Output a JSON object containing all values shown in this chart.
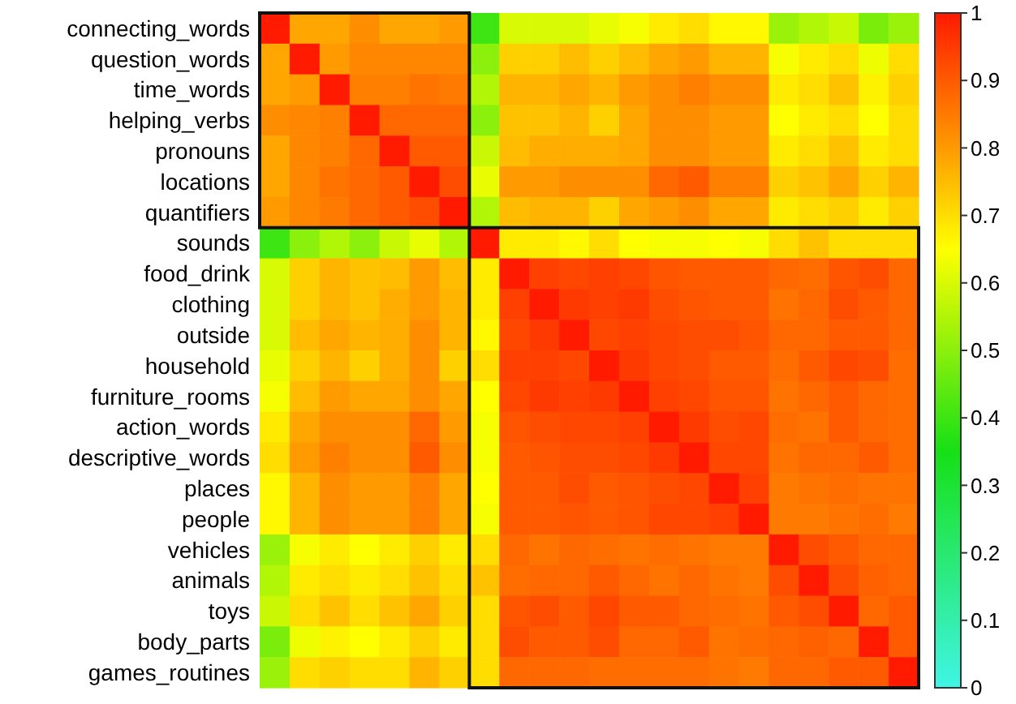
{
  "chart_data": {
    "type": "heatmap",
    "categories": [
      null,
      null,
      null,
      null,
      null,
      null,
      null,
      null,
      null,
      null,
      null,
      null,
      null,
      null,
      null,
      null,
      null,
      null,
      null,
      null,
      null,
      null
    ],
    "y_categories": [
      "connecting_words",
      "question_words",
      "time_words",
      "helping_verbs",
      "pronouns",
      "locations",
      "quantifiers",
      "sounds",
      "food_drink",
      "clothing",
      "outside",
      "household",
      "furniture_rooms",
      "action_words",
      "descriptive_words",
      "places",
      "people",
      "vehicles",
      "animals",
      "toys",
      "body_parts",
      "games_routines"
    ],
    "cells": [
      [
        1,
        0.78,
        0.78,
        0.82,
        0.78,
        0.78,
        0.8,
        0.4,
        0.6,
        0.6,
        0.6,
        0.62,
        0.64,
        0.68,
        0.7,
        0.66,
        0.66,
        0.52,
        0.55,
        0.58,
        0.48,
        0.52
      ],
      [
        0.78,
        1,
        0.8,
        0.83,
        0.83,
        0.83,
        0.83,
        0.5,
        0.72,
        0.72,
        0.75,
        0.72,
        0.75,
        0.78,
        0.8,
        0.76,
        0.76,
        0.64,
        0.68,
        0.7,
        0.63,
        0.7
      ],
      [
        0.78,
        0.8,
        1,
        0.84,
        0.84,
        0.86,
        0.85,
        0.55,
        0.76,
        0.76,
        0.78,
        0.76,
        0.8,
        0.82,
        0.84,
        0.82,
        0.82,
        0.68,
        0.7,
        0.74,
        0.67,
        0.72
      ],
      [
        0.82,
        0.83,
        0.84,
        1,
        0.88,
        0.88,
        0.88,
        0.5,
        0.74,
        0.74,
        0.76,
        0.72,
        0.78,
        0.82,
        0.82,
        0.8,
        0.8,
        0.65,
        0.68,
        0.7,
        0.65,
        0.7
      ],
      [
        0.78,
        0.83,
        0.84,
        0.88,
        1,
        0.9,
        0.9,
        0.58,
        0.75,
        0.77,
        0.77,
        0.77,
        0.78,
        0.82,
        0.82,
        0.8,
        0.8,
        0.68,
        0.7,
        0.74,
        0.68,
        0.7
      ],
      [
        0.78,
        0.83,
        0.86,
        0.88,
        0.9,
        1,
        0.92,
        0.62,
        0.8,
        0.8,
        0.82,
        0.82,
        0.82,
        0.88,
        0.9,
        0.84,
        0.84,
        0.72,
        0.74,
        0.78,
        0.72,
        0.76
      ],
      [
        0.8,
        0.83,
        0.85,
        0.88,
        0.9,
        0.92,
        1,
        0.55,
        0.75,
        0.76,
        0.76,
        0.72,
        0.78,
        0.8,
        0.82,
        0.78,
        0.78,
        0.68,
        0.7,
        0.72,
        0.68,
        0.72
      ],
      [
        0.4,
        0.5,
        0.55,
        0.5,
        0.58,
        0.62,
        0.55,
        1,
        0.68,
        0.68,
        0.66,
        0.7,
        0.65,
        0.64,
        0.64,
        0.65,
        0.64,
        0.7,
        0.74,
        0.7,
        0.7,
        0.7
      ],
      [
        0.6,
        0.72,
        0.76,
        0.74,
        0.75,
        0.8,
        0.75,
        0.68,
        1,
        0.94,
        0.93,
        0.94,
        0.93,
        0.91,
        0.9,
        0.9,
        0.9,
        0.88,
        0.87,
        0.91,
        0.92,
        0.88
      ],
      [
        0.6,
        0.72,
        0.76,
        0.74,
        0.77,
        0.8,
        0.76,
        0.68,
        0.94,
        1,
        0.95,
        0.94,
        0.95,
        0.92,
        0.91,
        0.9,
        0.9,
        0.86,
        0.88,
        0.92,
        0.9,
        0.88
      ],
      [
        0.6,
        0.75,
        0.78,
        0.76,
        0.77,
        0.82,
        0.76,
        0.66,
        0.93,
        0.95,
        1,
        0.93,
        0.94,
        0.93,
        0.92,
        0.92,
        0.91,
        0.88,
        0.88,
        0.9,
        0.9,
        0.88
      ],
      [
        0.62,
        0.72,
        0.76,
        0.72,
        0.77,
        0.82,
        0.72,
        0.7,
        0.94,
        0.94,
        0.93,
        1,
        0.95,
        0.93,
        0.92,
        0.9,
        0.9,
        0.87,
        0.9,
        0.93,
        0.92,
        0.87
      ],
      [
        0.64,
        0.75,
        0.8,
        0.78,
        0.78,
        0.82,
        0.78,
        0.65,
        0.93,
        0.95,
        0.94,
        0.95,
        1,
        0.94,
        0.93,
        0.91,
        0.91,
        0.86,
        0.88,
        0.9,
        0.88,
        0.87
      ],
      [
        0.68,
        0.78,
        0.82,
        0.82,
        0.82,
        0.88,
        0.8,
        0.64,
        0.91,
        0.92,
        0.93,
        0.93,
        0.94,
        1,
        0.95,
        0.92,
        0.93,
        0.87,
        0.86,
        0.9,
        0.88,
        0.87
      ],
      [
        0.7,
        0.8,
        0.84,
        0.82,
        0.82,
        0.9,
        0.82,
        0.64,
        0.9,
        0.91,
        0.92,
        0.92,
        0.93,
        0.95,
        1,
        0.93,
        0.93,
        0.86,
        0.88,
        0.88,
        0.9,
        0.87
      ],
      [
        0.66,
        0.76,
        0.82,
        0.8,
        0.8,
        0.84,
        0.78,
        0.65,
        0.9,
        0.9,
        0.92,
        0.9,
        0.91,
        0.92,
        0.93,
        1,
        0.94,
        0.85,
        0.86,
        0.87,
        0.86,
        0.86
      ],
      [
        0.66,
        0.76,
        0.82,
        0.8,
        0.8,
        0.84,
        0.78,
        0.64,
        0.9,
        0.9,
        0.91,
        0.9,
        0.91,
        0.93,
        0.93,
        0.94,
        1,
        0.85,
        0.85,
        0.86,
        0.87,
        0.85
      ],
      [
        0.52,
        0.64,
        0.68,
        0.65,
        0.68,
        0.72,
        0.68,
        0.7,
        0.88,
        0.86,
        0.88,
        0.87,
        0.86,
        0.87,
        0.86,
        0.85,
        0.85,
        1,
        0.92,
        0.9,
        0.88,
        0.88
      ],
      [
        0.55,
        0.68,
        0.7,
        0.68,
        0.7,
        0.74,
        0.7,
        0.74,
        0.87,
        0.88,
        0.88,
        0.9,
        0.88,
        0.86,
        0.88,
        0.86,
        0.85,
        0.92,
        1,
        0.92,
        0.89,
        0.88
      ],
      [
        0.58,
        0.7,
        0.74,
        0.7,
        0.74,
        0.78,
        0.72,
        0.7,
        0.91,
        0.92,
        0.9,
        0.93,
        0.9,
        0.9,
        0.88,
        0.87,
        0.86,
        0.9,
        0.92,
        1,
        0.88,
        0.9
      ],
      [
        0.48,
        0.63,
        0.67,
        0.65,
        0.68,
        0.72,
        0.68,
        0.7,
        0.92,
        0.9,
        0.9,
        0.92,
        0.88,
        0.88,
        0.9,
        0.86,
        0.87,
        0.88,
        0.89,
        0.88,
        1,
        0.9
      ],
      [
        0.52,
        0.7,
        0.72,
        0.7,
        0.7,
        0.76,
        0.72,
        0.7,
        0.88,
        0.88,
        0.88,
        0.87,
        0.87,
        0.87,
        0.87,
        0.86,
        0.85,
        0.88,
        0.88,
        0.9,
        0.9,
        1
      ]
    ],
    "clim": [
      0,
      1
    ],
    "cticks": [
      0,
      0.1,
      0.2,
      0.3,
      0.4,
      0.5,
      0.6,
      0.7,
      0.8,
      0.9,
      1
    ]
  }
}
